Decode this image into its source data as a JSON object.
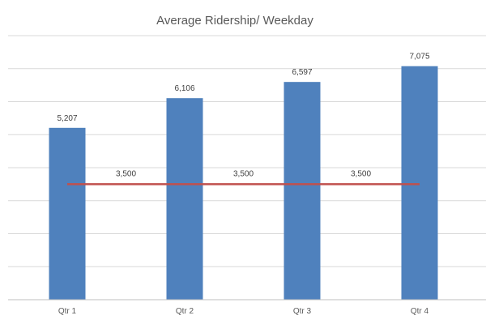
{
  "chart_data": {
    "type": "bar",
    "title": "Average Ridership/ Weekday",
    "categories": [
      "Qtr 1",
      "Qtr 2",
      "Qtr 3",
      "Qtr 4"
    ],
    "series": [
      {
        "type": "bar",
        "values": [
          5207,
          6106,
          6597,
          7075
        ],
        "data_labels": [
          "5,207",
          "6,106",
          "6,597",
          "7,075"
        ],
        "color": "#4f81bd"
      },
      {
        "type": "line",
        "values": [
          3500,
          3500,
          3500,
          3500
        ],
        "data_labels": [
          "3,500",
          "3,500",
          "3,500"
        ],
        "color": "#c0504d"
      }
    ],
    "ylim": [
      0,
      8000
    ],
    "y_gridline_step": 1000,
    "y_tick_labels_shown": false,
    "grid": true,
    "legend": "none"
  }
}
